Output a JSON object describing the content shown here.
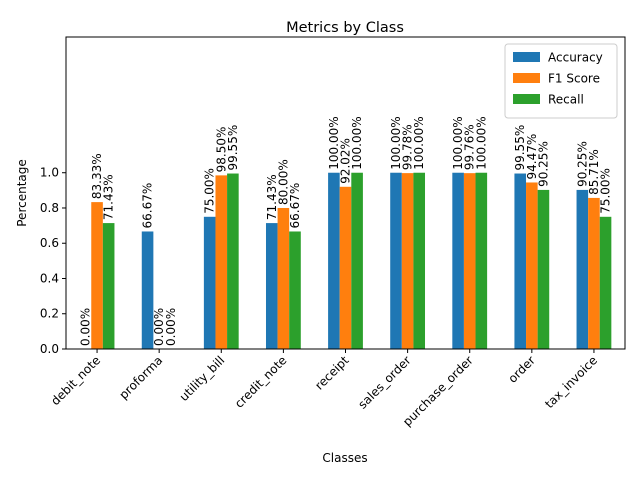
{
  "chart_data": {
    "type": "bar",
    "title": "Metrics by Class",
    "xlabel": "Classes",
    "ylabel": "Percentage",
    "ylim": [
      0,
      1.77
    ],
    "yticks": [
      0.0,
      0.2,
      0.4,
      0.6,
      0.8,
      1.0
    ],
    "grid": false,
    "legend_position": "top-right",
    "categories": [
      "debit_note",
      "proforma",
      "utility_bill",
      "credit_note",
      "receipt",
      "sales_order",
      "purchase_order",
      "order",
      "tax_invoice"
    ],
    "series": [
      {
        "name": "Accuracy",
        "color": "#1f77b4",
        "values": [
          0.0,
          0.6667,
          0.75,
          0.7143,
          1.0,
          1.0,
          1.0,
          0.9955,
          0.9025
        ],
        "labels": [
          "0.00%",
          "66.67%",
          "75.00%",
          "71.43%",
          "100.00%",
          "100.00%",
          "100.00%",
          "99.55%",
          "90.25%"
        ]
      },
      {
        "name": "F1 Score",
        "color": "#ff7f0e",
        "values": [
          0.8333,
          0.0,
          0.985,
          0.8,
          0.9202,
          0.9978,
          0.9976,
          0.9447,
          0.8571
        ],
        "labels": [
          "83.33%",
          "0.00%",
          "98.50%",
          "80.00%",
          "92.02%",
          "99.78%",
          "99.76%",
          "94.47%",
          "85.71%"
        ]
      },
      {
        "name": "Recall",
        "color": "#2ca02c",
        "values": [
          0.7143,
          0.0,
          0.9955,
          0.6667,
          1.0,
          1.0,
          1.0,
          0.9025,
          0.75
        ],
        "labels": [
          "71.43%",
          "0.00%",
          "99.55%",
          "66.67%",
          "100.00%",
          "100.00%",
          "100.00%",
          "90.25%",
          "75.00%"
        ]
      }
    ]
  }
}
